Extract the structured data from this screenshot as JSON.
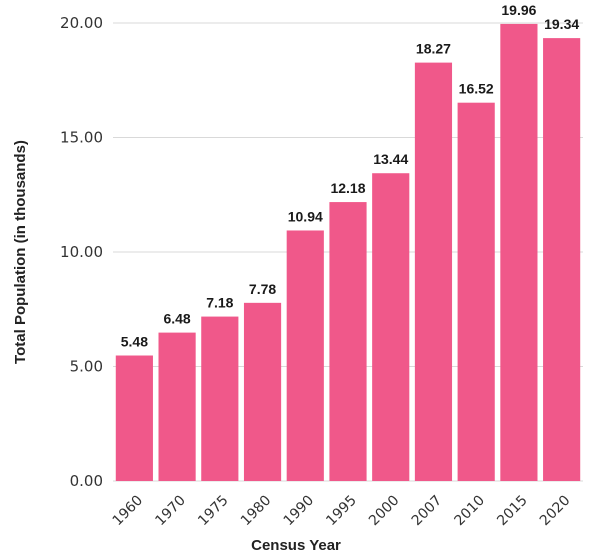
{
  "chart_data": {
    "type": "bar",
    "categories": [
      "1960",
      "1970",
      "1975",
      "1980",
      "1990",
      "1995",
      "2000",
      "2007",
      "2010",
      "2015",
      "2020"
    ],
    "values": [
      5.48,
      6.48,
      7.18,
      7.78,
      10.94,
      12.18,
      13.44,
      18.27,
      16.52,
      19.96,
      19.34
    ],
    "value_labels": [
      "5.48",
      "6.48",
      "7.18",
      "7.78",
      "10.94",
      "12.18",
      "13.44",
      "18.27",
      "16.52",
      "19.96",
      "19.34"
    ],
    "title": "",
    "xlabel": "Census Year",
    "ylabel": "Total Population (in thousands)",
    "ylim": [
      0,
      20
    ],
    "yticks": [
      0,
      5,
      10,
      15,
      20
    ],
    "ytick_labels": [
      "0.00",
      "5.00",
      "10.00",
      "15.00",
      "20.00"
    ],
    "grid": true,
    "legend": "none",
    "bar_color": "#f0588a"
  }
}
